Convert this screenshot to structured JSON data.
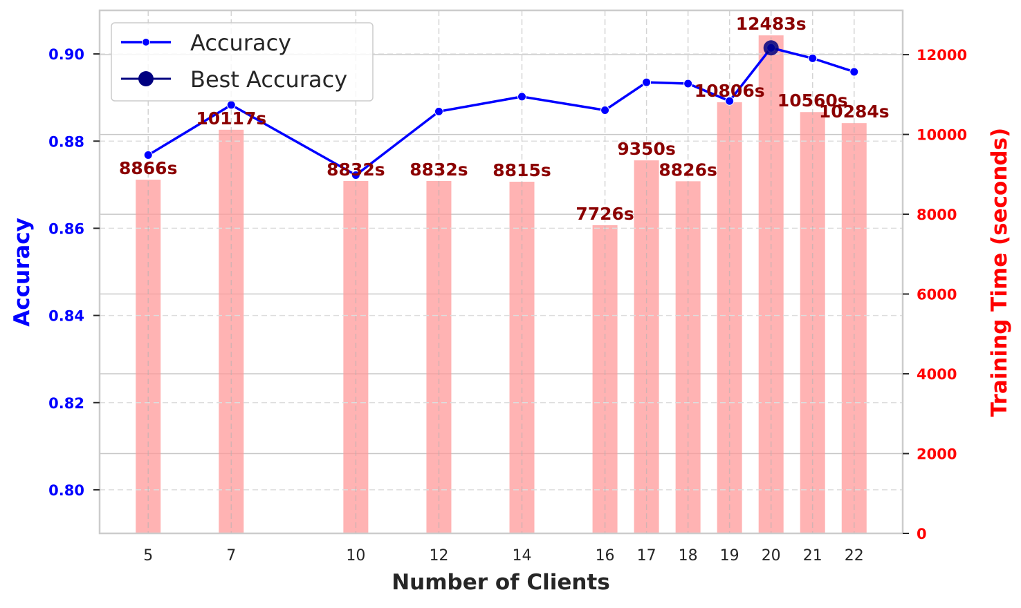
{
  "chart_data": {
    "type": "bar+line",
    "title": "",
    "xlabel": "Number of Clients",
    "ylabel": "Accuracy",
    "y2label": "Training Time (seconds)",
    "x": [
      5,
      7,
      10,
      12,
      14,
      16,
      17,
      18,
      19,
      20,
      21,
      22
    ],
    "xlim": [
      3.83,
      23.17
    ],
    "ylim": [
      0.79,
      0.91
    ],
    "y2lim": [
      0,
      13110
    ],
    "yticks": [
      0.8,
      0.82,
      0.84,
      0.86,
      0.88,
      0.9
    ],
    "ytick_labels": [
      "0.80",
      "0.82",
      "0.84",
      "0.86",
      "0.88",
      "0.90"
    ],
    "y2ticks": [
      0,
      2000,
      4000,
      6000,
      8000,
      10000,
      12000
    ],
    "y2tick_labels": [
      "0",
      "2000",
      "4000",
      "6000",
      "8000",
      "10000",
      "12000"
    ],
    "xtick_labels": [
      "5",
      "7",
      "10",
      "12",
      "14",
      "16",
      "17",
      "18",
      "19",
      "20",
      "21",
      "22"
    ],
    "series": [
      {
        "name": "Accuracy",
        "kind": "line",
        "axis": "left",
        "color": "#0000ff",
        "values": [
          0.8768,
          0.8883,
          0.8722,
          0.8868,
          0.8902,
          0.8871,
          0.8935,
          0.8932,
          0.8892,
          0.9014,
          0.899,
          0.8959
        ]
      },
      {
        "name": "Training Time",
        "kind": "bar",
        "axis": "right",
        "color": "#ff9999",
        "values": [
          8866,
          10117,
          8832,
          8832,
          8815,
          7726,
          9350,
          8826,
          10806,
          12483,
          10560,
          10284
        ],
        "labels": [
          "8866s",
          "10117s",
          "8832s",
          "8832s",
          "8815s",
          "7726s",
          "9350s",
          "8826s",
          "10806s",
          "12483s",
          "10560s",
          "10284s"
        ],
        "label_color": "#8b0000"
      },
      {
        "name": "Best Accuracy",
        "kind": "marker",
        "axis": "left",
        "color": "#000080",
        "x": 20,
        "value": 0.9014
      }
    ],
    "legend": {
      "position": "upper left",
      "entries": [
        "Accuracy",
        "Best Accuracy"
      ]
    },
    "grid": true,
    "colors": {
      "left_axis": "#0000ff",
      "right_axis": "#ff0000",
      "frame": "#cccccc",
      "grid_solid": "#c8c8c8",
      "grid_dashed": "#dddddd",
      "text_dark": "#262626"
    }
  }
}
